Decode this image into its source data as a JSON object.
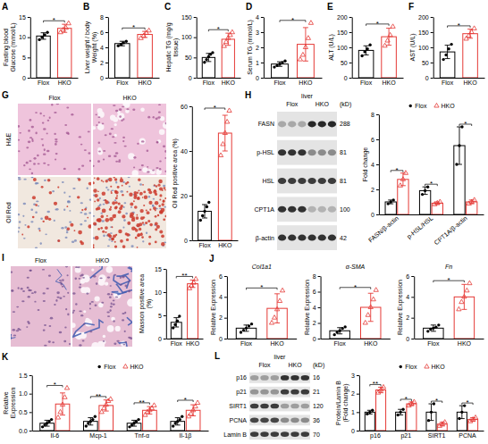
{
  "chart_data": [
    {
      "type": "bar",
      "panel": "A",
      "y_label": "Fasting blood Glucose (mmol/L)",
      "categories": [
        "Flox",
        "HKO"
      ],
      "values": [
        10.3,
        12.2
      ],
      "errors": [
        0.8,
        1.0
      ],
      "points": [
        [
          9.4,
          10.0,
          10.6,
          11.2
        ],
        [
          11.2,
          11.8,
          12.3,
          13.4
        ]
      ],
      "colors": [
        "#000000",
        "#e53935"
      ],
      "ylim": [
        0,
        15
      ],
      "yticks": [
        0,
        5,
        10,
        15
      ],
      "significance": "*"
    },
    {
      "type": "bar",
      "panel": "B",
      "y_label": "Liver weight / body Weight (%)",
      "categories": [
        "Flox",
        "HKO"
      ],
      "values": [
        4.5,
        5.7
      ],
      "errors": [
        0.3,
        0.4
      ],
      "points": [
        [
          4.2,
          4.4,
          4.6,
          4.8
        ],
        [
          5.2,
          5.5,
          5.9,
          6.2
        ]
      ],
      "colors": [
        "#000000",
        "#e53935"
      ],
      "ylim": [
        0,
        8
      ],
      "yticks": [
        0,
        2,
        4,
        6,
        8
      ],
      "significance": "*"
    },
    {
      "type": "bar",
      "panel": "C",
      "y_label": "Hepatic TG (mg/g tissue)",
      "categories": [
        "Flox",
        "HKO"
      ],
      "values": [
        50,
        95
      ],
      "errors": [
        10,
        15
      ],
      "points": [
        [
          38,
          45,
          52,
          58,
          62
        ],
        [
          78,
          88,
          98,
          105,
          112
        ]
      ],
      "colors": [
        "#000000",
        "#e53935"
      ],
      "ylim": [
        0,
        150
      ],
      "yticks": [
        0,
        50,
        100,
        150
      ],
      "significance": "*"
    },
    {
      "type": "bar",
      "panel": "D",
      "y_label": "Serum TG (mmol/L)",
      "categories": [
        "Flox",
        "HKO"
      ],
      "values": [
        0.9,
        2.2
      ],
      "errors": [
        0.15,
        1.1
      ],
      "points": [
        [
          0.7,
          0.8,
          0.9,
          1.0,
          1.1
        ],
        [
          1.2,
          1.5,
          2.0,
          2.6,
          3.6
        ]
      ],
      "colors": [
        "#000000",
        "#e53935"
      ],
      "ylim": [
        0,
        4
      ],
      "yticks": [
        0,
        1,
        2,
        3,
        4
      ],
      "significance": "*"
    },
    {
      "type": "bar",
      "panel": "E",
      "y_label": "ALT (U/L)",
      "categories": [
        "Flox",
        "HKO"
      ],
      "values": [
        90,
        135
      ],
      "errors": [
        15,
        28
      ],
      "points": [
        [
          72,
          85,
          95,
          108
        ],
        [
          105,
          122,
          140,
          168
        ]
      ],
      "colors": [
        "#000000",
        "#e53935"
      ],
      "ylim": [
        0,
        200
      ],
      "yticks": [
        0,
        50,
        100,
        150,
        200
      ],
      "significance": "*"
    },
    {
      "type": "bar",
      "panel": "F",
      "y_label": "AST (U/L)",
      "categories": [
        "Flox",
        "HKO"
      ],
      "values": [
        85,
        145
      ],
      "errors": [
        22,
        15
      ],
      "points": [
        [
          60,
          75,
          95,
          110
        ],
        [
          128,
          138,
          150,
          162
        ]
      ],
      "colors": [
        "#000000",
        "#e53935"
      ],
      "ylim": [
        0,
        200
      ],
      "yticks": [
        0,
        50,
        100,
        150,
        200
      ],
      "significance": "*"
    },
    {
      "type": "bar",
      "y_label": "Oil Red positive area (%)",
      "categories": [
        "Flox",
        "HKO"
      ],
      "values": [
        13,
        48
      ],
      "errors": [
        3,
        8
      ],
      "points": [
        [
          9,
          11,
          13,
          15,
          17
        ],
        [
          38,
          43,
          48,
          53,
          58
        ]
      ],
      "colors": [
        "#000000",
        "#e53935"
      ],
      "ylim": [
        0,
        60
      ],
      "yticks": [
        0,
        20,
        40,
        60
      ],
      "significance": "*"
    },
    {
      "type": "bar",
      "y_label": "Fold change",
      "categories": [
        "FASN/β-actin",
        "p-HSL/HSL",
        "CPT1A/β-actin"
      ],
      "series": [
        {
          "name": "Flox",
          "color": "#000000",
          "values": [
            1.0,
            1.9,
            5.5
          ],
          "errors": [
            0.15,
            0.3,
            1.5
          ],
          "points": [
            [
              0.85,
              1.0,
              1.15
            ],
            [
              1.6,
              1.9,
              2.2
            ],
            [
              4.0,
              5.5,
              7.0
            ]
          ]
        },
        {
          "name": "HKO",
          "color": "#e53935",
          "values": [
            2.8,
            0.9,
            1.0
          ],
          "errors": [
            0.5,
            0.1,
            0.15
          ],
          "points": [
            [
              2.3,
              2.8,
              3.3
            ],
            [
              0.8,
              0.9,
              1.0
            ],
            [
              0.85,
              1.0,
              1.15
            ]
          ]
        }
      ],
      "ylim": [
        0,
        8
      ],
      "yticks": [
        0,
        2,
        4,
        6,
        8
      ],
      "legend": "top",
      "significance": [
        "*",
        "*",
        "*"
      ]
    },
    {
      "type": "bar",
      "y_label": "Masson positive area (%)",
      "categories": [
        "Flox",
        "HKO"
      ],
      "values": [
        3.5,
        11.8
      ],
      "errors": [
        1.0,
        0.8
      ],
      "points": [
        [
          2.3,
          3.0,
          3.8,
          4.8
        ],
        [
          10.8,
          11.4,
          12.0,
          12.8
        ]
      ],
      "colors": [
        "#000000",
        "#e53935"
      ],
      "ylim": [
        0,
        15
      ],
      "yticks": [
        0,
        5,
        10,
        15
      ],
      "significance": "**"
    },
    {
      "type": "bar",
      "panel": "J",
      "title": "Col1a1",
      "y_label": "Relative Expression",
      "categories": [
        "Flox",
        "HKO"
      ],
      "values": [
        1.0,
        2.9
      ],
      "errors": [
        0.3,
        1.4
      ],
      "points": [
        [
          0.6,
          0.8,
          1.0,
          1.2,
          1.4
        ],
        [
          1.5,
          2.0,
          2.8,
          3.6,
          4.6
        ]
      ],
      "colors": [
        "#000000",
        "#e53935"
      ],
      "ylim": [
        0,
        6
      ],
      "yticks": [
        0,
        2,
        4,
        6
      ],
      "significance": "*"
    },
    {
      "type": "bar",
      "title": "α-SMA",
      "y_label": "Relative Expression",
      "categories": [
        "Flox",
        "HKO"
      ],
      "values": [
        1.0,
        4.0
      ],
      "errors": [
        0.4,
        1.8
      ],
      "points": [
        [
          0.5,
          0.8,
          1.0,
          1.3,
          1.5
        ],
        [
          2.0,
          3.0,
          4.0,
          5.0,
          6.2
        ]
      ],
      "colors": [
        "#000000",
        "#e53935"
      ],
      "ylim": [
        0,
        8
      ],
      "yticks": [
        0,
        2,
        4,
        6,
        8
      ],
      "significance": "*"
    },
    {
      "type": "bar",
      "title": "Fn",
      "y_label": "Relative Expression",
      "categories": [
        "Flox",
        "HKO"
      ],
      "values": [
        1.0,
        4.0
      ],
      "errors": [
        0.3,
        1.2
      ],
      "points": [
        [
          0.7,
          0.9,
          1.0,
          1.1,
          1.3
        ],
        [
          2.8,
          3.5,
          4.0,
          4.6,
          5.3
        ]
      ],
      "colors": [
        "#000000",
        "#e53935"
      ],
      "ylim": [
        0,
        6
      ],
      "yticks": [
        0,
        2,
        4,
        6
      ],
      "significance": "*"
    },
    {
      "type": "bar",
      "panel": "K",
      "y_label": "Relative Expression",
      "categories": [
        "Il-6",
        "Mcp-1",
        "Tnf-α",
        "Il-1β"
      ],
      "series": [
        {
          "name": "Flox",
          "color": "#000000",
          "values": [
            0.2,
            0.25,
            0.2,
            0.25
          ],
          "errors": [
            0.08,
            0.1,
            0.08,
            0.1
          ],
          "points": [
            [
              0.1,
              0.15,
              0.2,
              0.25,
              0.3
            ],
            [
              0.12,
              0.2,
              0.25,
              0.3,
              0.38
            ],
            [
              0.1,
              0.15,
              0.2,
              0.25,
              0.3
            ],
            [
              0.12,
              0.2,
              0.25,
              0.3,
              0.38
            ]
          ]
        },
        {
          "name": "HKO",
          "color": "#e53935",
          "values": [
            0.72,
            0.68,
            0.55,
            0.55
          ],
          "errors": [
            0.3,
            0.15,
            0.1,
            0.15
          ],
          "points": [
            [
              0.35,
              0.5,
              0.7,
              0.9,
              1.15
            ],
            [
              0.5,
              0.6,
              0.7,
              0.8,
              0.85
            ],
            [
              0.42,
              0.5,
              0.55,
              0.6,
              0.68
            ],
            [
              0.38,
              0.45,
              0.55,
              0.65,
              0.75
            ]
          ]
        }
      ],
      "ylim": [
        0,
        1.5
      ],
      "yticks": [
        {
          "value": 0,
          "label": "0.0"
        },
        0.5,
        {
          "value": 1,
          "label": "1.0"
        },
        1.5
      ],
      "legend": "top",
      "significance": [
        "*",
        "**",
        "**",
        "*"
      ]
    },
    {
      "type": "bar",
      "y_label": "Protein/Lamin B (Fold change)",
      "categories": [
        "p16",
        "p21",
        "SIRT1",
        "PCNA"
      ],
      "series": [
        {
          "name": "Flox",
          "color": "#000000",
          "values": [
            1,
            1,
            1,
            1
          ],
          "errors": [
            0.1,
            0.15,
            0.45,
            0.35
          ],
          "points": [
            [
              0.9,
              1.0,
              1.1
            ],
            [
              0.85,
              1.0,
              1.15
            ],
            [
              0.55,
              1.0,
              1.45
            ],
            [
              0.65,
              1.0,
              1.35
            ]
          ]
        },
        {
          "name": "HKO",
          "color": "#e53935",
          "values": [
            2.2,
            1.45,
            0.35,
            0.6
          ],
          "errors": [
            0.15,
            0.1,
            0.1,
            0.1
          ],
          "points": [
            [
              2.05,
              2.2,
              2.35
            ],
            [
              1.35,
              1.45,
              1.55
            ],
            [
              0.25,
              0.35,
              0.45
            ],
            [
              0.5,
              0.6,
              0.7
            ]
          ]
        }
      ],
      "ylim": [
        0,
        3
      ],
      "yticks": [
        0,
        1,
        2,
        3
      ],
      "legend": "top",
      "significance": [
        "**",
        "*",
        "*",
        "*"
      ]
    }
  ],
  "images": [
    {
      "panel": "G",
      "columns": [
        "Flox",
        "HKO"
      ],
      "rows": [
        "H&E",
        "Oil Red"
      ]
    },
    {
      "panel": "H",
      "tissue": "liver",
      "columns": [
        "Flox",
        "HKO"
      ],
      "unit": "(kD)",
      "bands": [
        {
          "label": "FASN",
          "kd": 288
        },
        {
          "label": "p-HSL",
          "kd": 81
        },
        {
          "label": "HSL",
          "kd": 81
        },
        {
          "label": "CPT1A",
          "kd": 100
        },
        {
          "label": "β-actin",
          "kd": 42
        }
      ]
    },
    {
      "panel": "I",
      "columns": [
        "Flox",
        "HKO"
      ]
    },
    {
      "panel": "L",
      "tissue": "liver",
      "columns": [
        "Flox",
        "HKO"
      ],
      "unit": "(kD)",
      "bands": [
        {
          "label": "p16",
          "kd": 16
        },
        {
          "label": "p21",
          "kd": 21
        },
        {
          "label": "SIRT1",
          "kd": 120
        },
        {
          "label": "PCNA",
          "kd": 36
        },
        {
          "label": "Lamin B",
          "kd": 70
        }
      ]
    }
  ]
}
